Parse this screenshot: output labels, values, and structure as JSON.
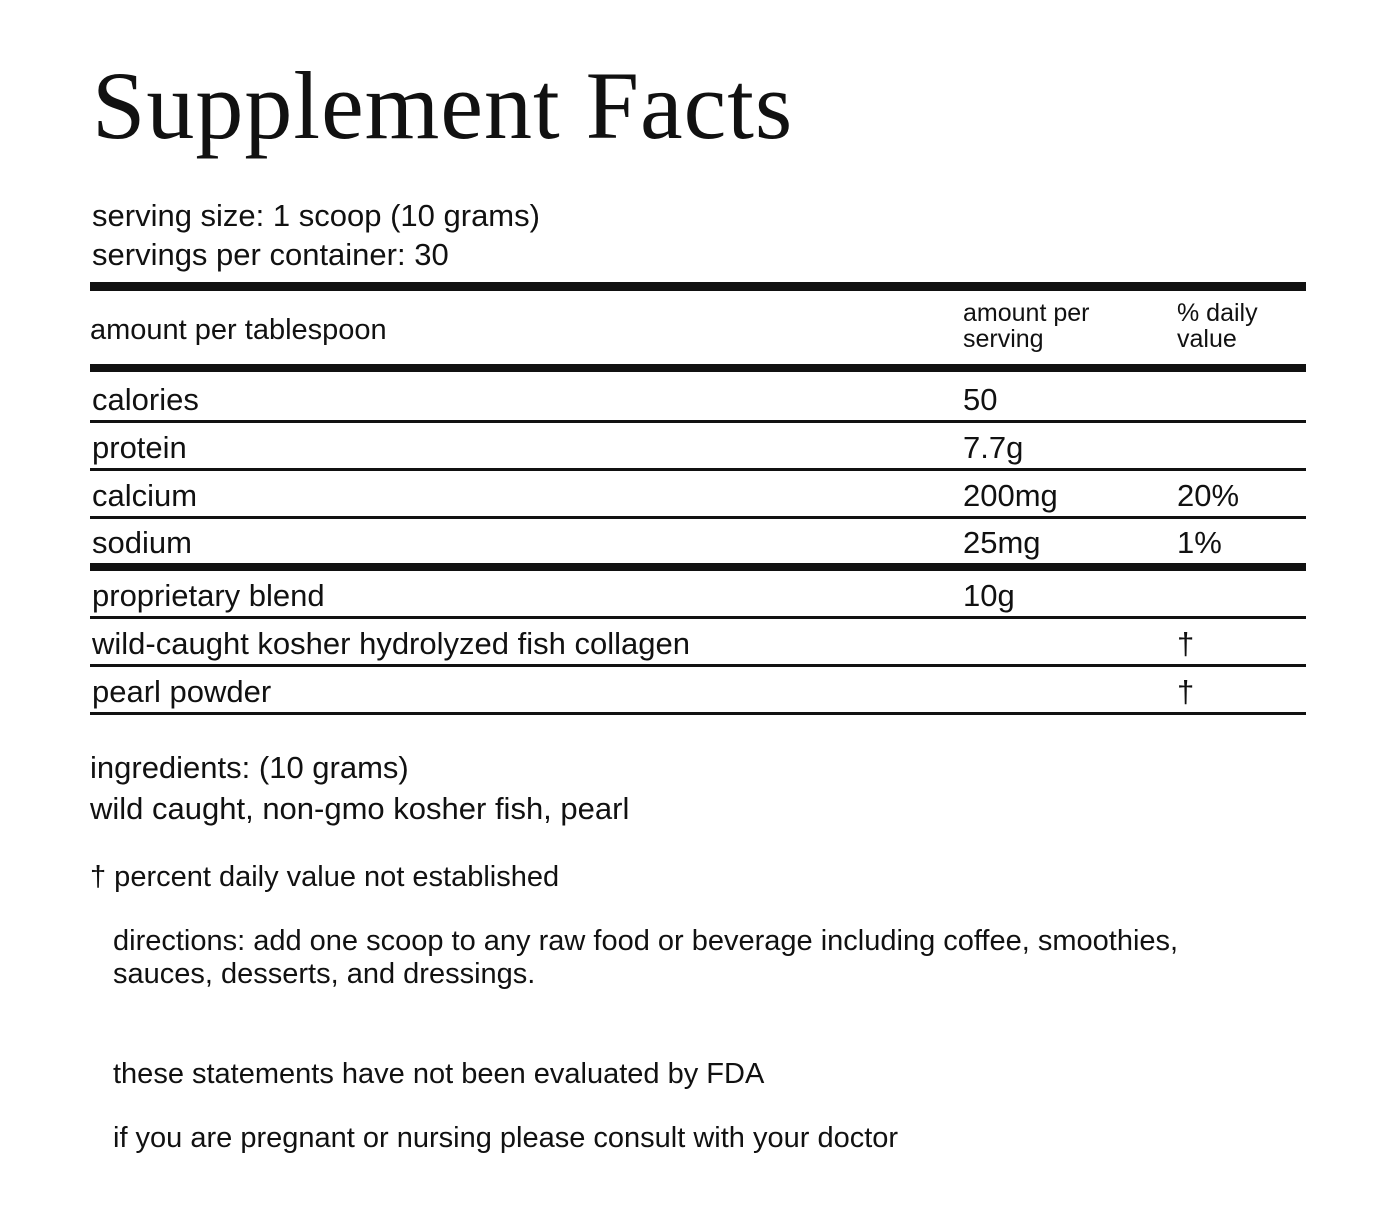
{
  "title": "Supplement Facts",
  "serving": [
    "serving size: 1 scoop (10 grams)",
    "servings per container: 30"
  ],
  "table": {
    "header": {
      "name": "amount per tablespoon",
      "amount": [
        "amount per",
        "serving"
      ],
      "dv": [
        "% daily",
        "value"
      ]
    },
    "rows": [
      {
        "name": "calories",
        "amount": "50"
      },
      {
        "name": "protein",
        "amount": "7.7g"
      },
      {
        "name": "calcium",
        "amount": "200mg",
        "dv": "20%"
      },
      {
        "name": "sodium",
        "amount": "25mg",
        "dv": "1%"
      },
      {
        "name": "proprietary blend",
        "amount": "10g"
      },
      {
        "name": "wild-caught kosher hydrolyzed fish collagen",
        "dv": "†"
      },
      {
        "name": "pearl powder",
        "dv": "†"
      }
    ]
  },
  "ingredients": [
    "ingredients: (10 grams)",
    "wild caught, non-gmo kosher fish, pearl"
  ],
  "footnote": "† percent daily value not established",
  "directions": "directions: add one scoop to any raw food or beverage including coffee, smoothies, sauces, desserts, and dressings.",
  "disclaimer": "these statements have not been evaluated by FDA",
  "warning": "if you are pregnant or nursing please consult with your doctor"
}
